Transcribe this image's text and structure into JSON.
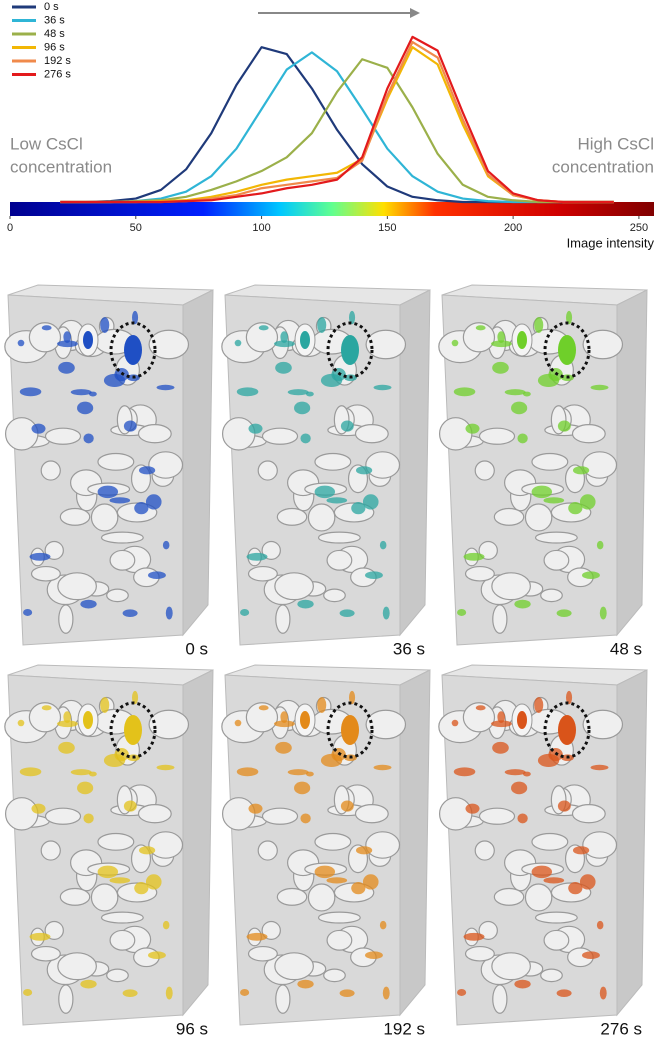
{
  "chart_data": {
    "type": "line",
    "x": [
      20,
      30,
      40,
      50,
      60,
      70,
      80,
      90,
      100,
      110,
      120,
      130,
      140,
      150,
      160,
      170,
      180,
      190,
      200,
      210,
      220,
      230,
      240
    ],
    "series": [
      {
        "name": "0 s",
        "color": "#1f3a7a",
        "values": [
          0,
          0,
          0.5,
          2,
          7,
          19,
          40,
          68,
          90,
          86,
          66,
          42,
          22,
          9,
          3,
          1,
          0,
          0,
          0,
          0,
          0,
          0,
          0
        ]
      },
      {
        "name": "36 s",
        "color": "#2fb5d6",
        "values": [
          0,
          0,
          0,
          0.5,
          2,
          6,
          15,
          31,
          54,
          77,
          87,
          76,
          54,
          31,
          15,
          6,
          2,
          0.5,
          0,
          0,
          0,
          0,
          0
        ]
      },
      {
        "name": "48 s",
        "color": "#9bb04a",
        "values": [
          0,
          0,
          0,
          0.5,
          1,
          3,
          7,
          12,
          18,
          26,
          40,
          64,
          83,
          78,
          55,
          28,
          10,
          3,
          1,
          0,
          0,
          0,
          0
        ]
      },
      {
        "name": "96 s",
        "color": "#f2b705",
        "values": [
          0,
          0,
          0,
          0,
          0.5,
          1,
          3,
          6,
          10,
          13,
          15,
          17,
          25,
          60,
          90,
          80,
          45,
          15,
          4,
          1,
          0,
          0,
          0
        ]
      },
      {
        "name": "192 s",
        "color": "#f08a4b",
        "values": [
          0,
          0,
          0,
          0,
          0,
          0.5,
          2,
          4,
          8,
          10,
          12,
          14,
          24,
          62,
          93,
          84,
          48,
          16,
          4,
          1,
          0,
          0,
          0
        ]
      },
      {
        "name": "276 s",
        "color": "#e31a1c",
        "values": [
          0,
          0,
          0,
          0,
          0,
          0.5,
          1,
          3,
          5,
          8,
          10,
          13,
          26,
          66,
          96,
          88,
          52,
          18,
          5,
          1,
          0,
          0,
          0
        ]
      }
    ],
    "xlim": [
      0,
      256
    ],
    "xticks": [
      0,
      50,
      100,
      150,
      200,
      250
    ],
    "ylim": [
      0,
      100
    ],
    "xlabel": "Image intensity",
    "annotations": [
      {
        "lines": [
          "Low CsCl",
          "concentration"
        ]
      },
      {
        "lines": [
          "High CsCl",
          "concentration"
        ]
      }
    ],
    "legend": "top-left"
  },
  "panels": [
    {
      "label": "0 s",
      "color": "#1f4fc4"
    },
    {
      "label": "36 s",
      "color": "#2aa6a0"
    },
    {
      "label": "48 s",
      "color": "#6fcf2a"
    },
    {
      "label": "96 s",
      "color": "#e3c21a"
    },
    {
      "label": "192 s",
      "color": "#e38a1a"
    },
    {
      "label": "276 s",
      "color": "#d9541a"
    }
  ]
}
